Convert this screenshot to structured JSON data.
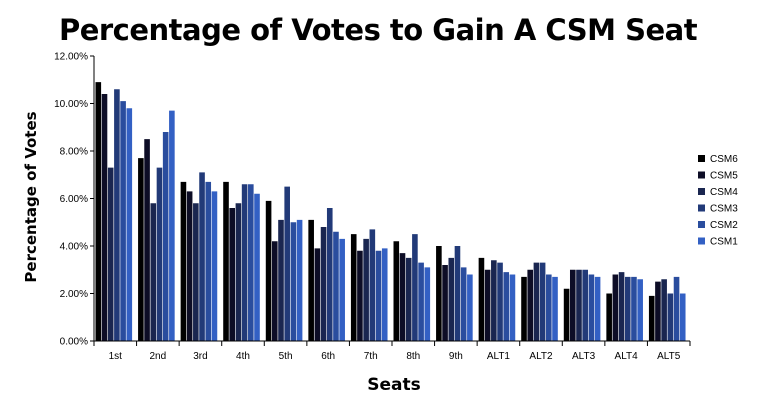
{
  "chart_data": {
    "type": "bar",
    "title": "Percentage of Votes to Gain A CSM Seat",
    "xlabel": "Seats",
    "ylabel": "Percentage of Votes",
    "ylim": [
      0,
      0.12
    ],
    "yticks": [
      "0.00%",
      "2.00%",
      "4.00%",
      "6.00%",
      "8.00%",
      "10.00%",
      "12.00%"
    ],
    "grid": false,
    "legend_position": "right",
    "categories": [
      "1st",
      "2nd",
      "3rd",
      "4th",
      "5th",
      "6th",
      "7th",
      "8th",
      "9th",
      "ALT1",
      "ALT2",
      "ALT3",
      "ALT4",
      "ALT5"
    ],
    "series": [
      {
        "name": "CSM6",
        "color": "#000000",
        "values": [
          0.109,
          0.077,
          0.067,
          0.067,
          0.059,
          0.051,
          0.045,
          0.042,
          0.04,
          0.035,
          0.027,
          0.022,
          0.02,
          0.019
        ]
      },
      {
        "name": "CSM5",
        "color": "#0d0d26",
        "values": [
          0.104,
          0.085,
          0.063,
          0.056,
          0.042,
          0.039,
          0.038,
          0.037,
          0.032,
          0.03,
          0.03,
          0.03,
          0.028,
          0.025
        ]
      },
      {
        "name": "CSM4",
        "color": "#1a2650",
        "values": [
          0.073,
          0.058,
          0.058,
          0.058,
          0.051,
          0.048,
          0.043,
          0.035,
          0.035,
          0.034,
          0.033,
          0.03,
          0.029,
          0.026
        ]
      },
      {
        "name": "CSM3",
        "color": "#223a78",
        "values": [
          0.106,
          0.073,
          0.071,
          0.066,
          0.065,
          0.056,
          0.047,
          0.045,
          0.04,
          0.033,
          0.033,
          0.03,
          0.027,
          0.02
        ]
      },
      {
        "name": "CSM2",
        "color": "#2a4d9e",
        "values": [
          0.101,
          0.088,
          0.067,
          0.066,
          0.05,
          0.046,
          0.038,
          0.033,
          0.031,
          0.029,
          0.028,
          0.028,
          0.027,
          0.027
        ]
      },
      {
        "name": "CSM1",
        "color": "#3360c4",
        "values": [
          0.098,
          0.097,
          0.063,
          0.062,
          0.051,
          0.043,
          0.039,
          0.031,
          0.028,
          0.028,
          0.027,
          0.027,
          0.026,
          0.02
        ]
      }
    ]
  }
}
